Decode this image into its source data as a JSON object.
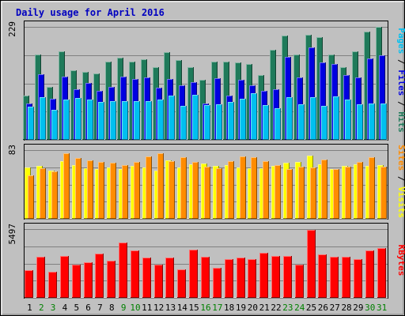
{
  "chart_data": {
    "type": "bar",
    "title": "Daily usage for April 2016",
    "categories": [
      "1",
      "2",
      "3",
      "4",
      "5",
      "6",
      "7",
      "8",
      "9",
      "10",
      "11",
      "12",
      "13",
      "14",
      "15",
      "16",
      "17",
      "18",
      "19",
      "20",
      "21",
      "22",
      "23",
      "24",
      "25",
      "26",
      "27",
      "28",
      "29",
      "30",
      "31"
    ],
    "weekend_days": [
      "2",
      "3",
      "9",
      "10",
      "16",
      "17",
      "23",
      "24",
      "30",
      "31"
    ],
    "colors": {
      "hits": "#1f7a5a",
      "files": "#0000e0",
      "pages": "#00c0f0",
      "visits": "#ffff00",
      "sites": "#ff8c00",
      "kbytes": "#ff0000",
      "title": "#0000c0",
      "weekday_label": "#000000",
      "weekend_label": "#008000"
    },
    "panels": [
      {
        "id": "usage",
        "ymax": 229,
        "ymax_label": "229",
        "legend": [
          {
            "text": "Pages",
            "color": "#00c0f0"
          },
          {
            "text": " / ",
            "color": "#000000"
          },
          {
            "text": "Files",
            "color": "#0000e0"
          },
          {
            "text": " / ",
            "color": "#000000"
          },
          {
            "text": "Hits",
            "color": "#1f7a5a"
          }
        ],
        "series": [
          {
            "name": "Hits",
            "color": "#1f7a5a",
            "values": [
              90,
              173,
              108,
              179,
              141,
              137,
              135,
              159,
              166,
              159,
              164,
              147,
              178,
              162,
              148,
              121,
              159,
              158,
              157,
              153,
              131,
              182,
              212,
              173,
              213,
              208,
              173,
              148,
              179,
              219,
              229
            ]
          },
          {
            "name": "Files",
            "color": "#0000e0",
            "values": [
              73,
              133,
              83,
              128,
              103,
              116,
              100,
              108,
              128,
              124,
              126,
              105,
              124,
              110,
              117,
              74,
              125,
              89,
              121,
              111,
              100,
              103,
              168,
              127,
              188,
              157,
              153,
              132,
              126,
              165,
              172
            ]
          },
          {
            "name": "Pages",
            "color": "#00c0f0",
            "values": [
              67,
              86,
              61,
              82,
              85,
              82,
              77,
              79,
              79,
              79,
              78,
              82,
              90,
              69,
              91,
              71,
              72,
              77,
              83,
              94,
              70,
              64,
              86,
              72,
              86,
              69,
              88,
              82,
              72,
              73,
              74
            ]
          }
        ]
      },
      {
        "id": "visits",
        "ymax": 83,
        "ymax_label": "83",
        "legend": [
          {
            "text": "Sites",
            "color": "#ff8c00"
          },
          {
            "text": " / ",
            "color": "#000000"
          },
          {
            "text": "Visits",
            "color": "#ffff00"
          }
        ],
        "series": [
          {
            "name": "Visits",
            "color": "#ffff00",
            "values": [
              62,
              64,
              58,
              70,
              65,
              61,
              60,
              62,
              60,
              64,
              62,
              58,
              71,
              62,
              66,
              67,
              64,
              65,
              62,
              61,
              61,
              64,
              68,
              69,
              76,
              66,
              60,
              64,
              66,
              64,
              65
            ]
          },
          {
            "name": "Sites",
            "color": "#ff8c00",
            "values": [
              52,
              61,
              57,
              79,
              73,
              71,
              69,
              68,
              65,
              69,
              75,
              79,
              70,
              74,
              69,
              63,
              61,
              70,
              75,
              74,
              70,
              65,
              60,
              63,
              62,
              72,
              60,
              63,
              69,
              74,
              63
            ]
          }
        ]
      },
      {
        "id": "kbytes",
        "ymax": 5497,
        "ymax_label": "5497",
        "legend": [
          {
            "text": "KBytes",
            "color": "#ff0000"
          }
        ],
        "series": [
          {
            "name": "KBytes",
            "color": "#ff0000",
            "values": [
              2200,
              3300,
              2090,
              3380,
              2670,
              2840,
              3540,
              2940,
              4420,
              3780,
              3230,
              2670,
              3210,
              2270,
              3880,
              3300,
              2410,
              3080,
              3230,
              3100,
              3580,
              3380,
              3320,
              2630,
              5460,
              3450,
              3300,
              3270,
              3100,
              3770,
              3960
            ]
          }
        ]
      }
    ]
  }
}
